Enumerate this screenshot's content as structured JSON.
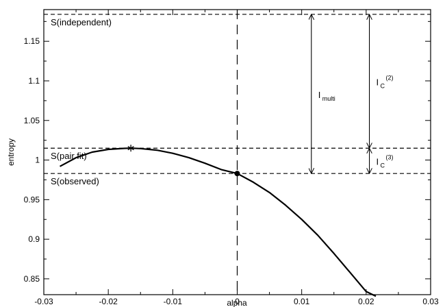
{
  "chart_data": {
    "type": "line",
    "xlabel": "alpha",
    "ylabel": "entropy",
    "xlim": [
      -0.03,
      0.03
    ],
    "ylim": [
      0.83,
      1.19
    ],
    "x_ticks": [
      -0.03,
      -0.02,
      -0.01,
      0,
      0.01,
      0.02,
      0.03
    ],
    "x_tick_labels": [
      "-0.03",
      "-0.02",
      "-0.01",
      "0",
      "0.01",
      "0.02",
      "0.03"
    ],
    "y_ticks": [
      0.85,
      0.9,
      0.95,
      1,
      1.05,
      1.1,
      1.15
    ],
    "y_tick_labels": [
      "0.85",
      "0.9",
      "0.95",
      "1",
      "1.05",
      "1.1",
      "1.15"
    ],
    "grid": false,
    "series": [
      {
        "x": [
          -0.0275,
          -0.025,
          -0.0225,
          -0.02,
          -0.0175,
          -0.0165,
          -0.015,
          -0.0125,
          -0.01,
          -0.0075,
          -0.005,
          -0.0025,
          0.0,
          0.0025,
          0.005,
          0.0075,
          0.01,
          0.0125,
          0.015,
          0.0175,
          0.02,
          0.0215
        ],
        "y": [
          0.992,
          1.003,
          1.01,
          1.0135,
          1.0148,
          1.015,
          1.0145,
          1.0125,
          1.0085,
          1.003,
          0.996,
          0.988,
          0.983,
          0.972,
          0.959,
          0.943,
          0.925,
          0.905,
          0.882,
          0.858,
          0.834,
          0.828
        ]
      }
    ],
    "markers": [
      {
        "symbol": "*",
        "x": -0.0165,
        "y": 1.015
      },
      {
        "symbol": "dot",
        "x": 0.0,
        "y": 0.983
      }
    ],
    "reference_lines": [
      {
        "orientation": "horizontal",
        "y": 1.184,
        "label": "S(independent)"
      },
      {
        "orientation": "horizontal",
        "y": 1.015,
        "label": "S(pair fit)"
      },
      {
        "orientation": "horizontal",
        "y": 0.983,
        "label": "S(observed)"
      },
      {
        "orientation": "vertical",
        "x": 0.0,
        "label": ""
      }
    ],
    "arrows": [
      {
        "x": 0.0115,
        "y_from": 0.983,
        "y_to": 1.184,
        "label_main": "I",
        "label_sub": "multi",
        "label_sup": ""
      },
      {
        "x": 0.0205,
        "y_from": 1.015,
        "y_to": 1.184,
        "label_main": "I",
        "label_sub": "C",
        "label_sup": "(2)"
      },
      {
        "x": 0.0205,
        "y_from": 0.983,
        "y_to": 1.015,
        "label_main": "I",
        "label_sub": "C",
        "label_sup": "(3)"
      }
    ]
  }
}
